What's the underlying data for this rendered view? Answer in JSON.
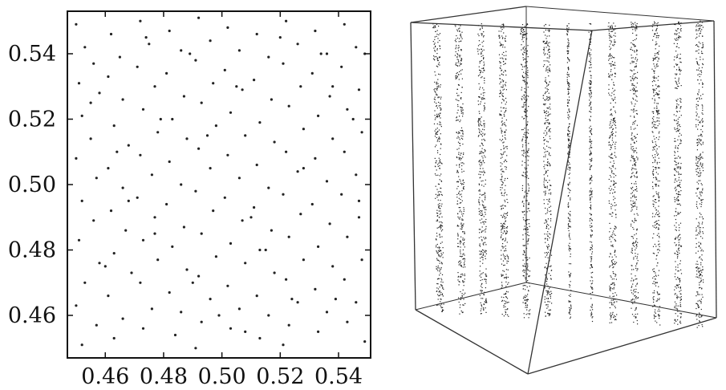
{
  "chart_data": [
    {
      "type": "scatter",
      "title": "",
      "xlabel": "",
      "ylabel": "",
      "xlim": [
        0.447,
        0.551
      ],
      "ylim": [
        0.447,
        0.553
      ],
      "x_ticks": [
        0.46,
        0.48,
        0.5,
        0.52,
        0.54
      ],
      "y_ticks": [
        0.46,
        0.48,
        0.5,
        0.52,
        0.54
      ],
      "x_tick_labels": [
        "0.46",
        "0.48",
        "0.50",
        "0.52",
        "0.54"
      ],
      "y_tick_labels": [
        "0.46",
        "0.48",
        "0.50",
        "0.52",
        "0.54"
      ],
      "grid": false,
      "marker_color": "#222222",
      "points": [
        [
          0.45,
          0.549
        ],
        [
          0.453,
          0.542
        ],
        [
          0.456,
          0.537
        ],
        [
          0.451,
          0.531
        ],
        [
          0.458,
          0.528
        ],
        [
          0.452,
          0.521
        ],
        [
          0.455,
          0.514
        ],
        [
          0.45,
          0.508
        ],
        [
          0.457,
          0.502
        ],
        [
          0.452,
          0.495
        ],
        [
          0.456,
          0.489
        ],
        [
          0.451,
          0.483
        ],
        [
          0.458,
          0.476
        ],
        [
          0.453,
          0.47
        ],
        [
          0.45,
          0.463
        ],
        [
          0.457,
          0.457
        ],
        [
          0.452,
          0.451
        ],
        [
          0.462,
          0.546
        ],
        [
          0.465,
          0.539
        ],
        [
          0.461,
          0.533
        ],
        [
          0.466,
          0.526
        ],
        [
          0.463,
          0.518
        ],
        [
          0.468,
          0.512
        ],
        [
          0.461,
          0.505
        ],
        [
          0.466,
          0.499
        ],
        [
          0.462,
          0.492
        ],
        [
          0.467,
          0.486
        ],
        [
          0.463,
          0.479
        ],
        [
          0.469,
          0.473
        ],
        [
          0.461,
          0.466
        ],
        [
          0.466,
          0.459
        ],
        [
          0.463,
          0.453
        ],
        [
          0.472,
          0.55
        ],
        [
          0.475,
          0.543
        ],
        [
          0.471,
          0.536
        ],
        [
          0.477,
          0.53
        ],
        [
          0.473,
          0.523
        ],
        [
          0.478,
          0.516
        ],
        [
          0.472,
          0.509
        ],
        [
          0.476,
          0.503
        ],
        [
          0.471,
          0.496
        ],
        [
          0.477,
          0.49
        ],
        [
          0.473,
          0.483
        ],
        [
          0.478,
          0.477
        ],
        [
          0.472,
          0.47
        ],
        [
          0.476,
          0.462
        ],
        [
          0.473,
          0.456
        ],
        [
          0.482,
          0.547
        ],
        [
          0.486,
          0.541
        ],
        [
          0.481,
          0.534
        ],
        [
          0.487,
          0.527
        ],
        [
          0.483,
          0.52
        ],
        [
          0.488,
          0.514
        ],
        [
          0.482,
          0.507
        ],
        [
          0.486,
          0.5
        ],
        [
          0.481,
          0.494
        ],
        [
          0.487,
          0.487
        ],
        [
          0.483,
          0.481
        ],
        [
          0.488,
          0.474
        ],
        [
          0.482,
          0.467
        ],
        [
          0.486,
          0.461
        ],
        [
          0.484,
          0.454
        ],
        [
          0.492,
          0.551
        ],
        [
          0.496,
          0.544
        ],
        [
          0.491,
          0.538
        ],
        [
          0.497,
          0.531
        ],
        [
          0.493,
          0.525
        ],
        [
          0.498,
          0.518
        ],
        [
          0.492,
          0.511
        ],
        [
          0.496,
          0.505
        ],
        [
          0.491,
          0.498
        ],
        [
          0.497,
          0.492
        ],
        [
          0.493,
          0.485
        ],
        [
          0.498,
          0.478
        ],
        [
          0.492,
          0.472
        ],
        [
          0.496,
          0.465
        ],
        [
          0.493,
          0.458
        ],
        [
          0.491,
          0.45
        ],
        [
          0.502,
          0.548
        ],
        [
          0.506,
          0.541
        ],
        [
          0.501,
          0.535
        ],
        [
          0.507,
          0.529
        ],
        [
          0.503,
          0.522
        ],
        [
          0.508,
          0.515
        ],
        [
          0.502,
          0.509
        ],
        [
          0.506,
          0.502
        ],
        [
          0.501,
          0.496
        ],
        [
          0.507,
          0.489
        ],
        [
          0.503,
          0.482
        ],
        [
          0.508,
          0.476
        ],
        [
          0.502,
          0.469
        ],
        [
          0.506,
          0.462
        ],
        [
          0.503,
          0.456
        ],
        [
          0.512,
          0.546
        ],
        [
          0.516,
          0.539
        ],
        [
          0.511,
          0.532
        ],
        [
          0.517,
          0.526
        ],
        [
          0.513,
          0.519
        ],
        [
          0.518,
          0.513
        ],
        [
          0.512,
          0.506
        ],
        [
          0.516,
          0.499
        ],
        [
          0.511,
          0.493
        ],
        [
          0.517,
          0.486
        ],
        [
          0.513,
          0.48
        ],
        [
          0.518,
          0.473
        ],
        [
          0.512,
          0.466
        ],
        [
          0.516,
          0.46
        ],
        [
          0.513,
          0.453
        ],
        [
          0.522,
          0.55
        ],
        [
          0.526,
          0.543
        ],
        [
          0.521,
          0.537
        ],
        [
          0.527,
          0.53
        ],
        [
          0.523,
          0.524
        ],
        [
          0.528,
          0.517
        ],
        [
          0.522,
          0.51
        ],
        [
          0.526,
          0.504
        ],
        [
          0.521,
          0.497
        ],
        [
          0.527,
          0.491
        ],
        [
          0.523,
          0.484
        ],
        [
          0.528,
          0.477
        ],
        [
          0.522,
          0.471
        ],
        [
          0.526,
          0.464
        ],
        [
          0.523,
          0.457
        ],
        [
          0.521,
          0.451
        ],
        [
          0.532,
          0.547
        ],
        [
          0.536,
          0.54
        ],
        [
          0.531,
          0.534
        ],
        [
          0.537,
          0.527
        ],
        [
          0.533,
          0.521
        ],
        [
          0.538,
          0.514
        ],
        [
          0.532,
          0.508
        ],
        [
          0.536,
          0.501
        ],
        [
          0.531,
          0.494
        ],
        [
          0.537,
          0.488
        ],
        [
          0.533,
          0.481
        ],
        [
          0.538,
          0.475
        ],
        [
          0.532,
          0.468
        ],
        [
          0.536,
          0.461
        ],
        [
          0.533,
          0.455
        ],
        [
          0.542,
          0.549
        ],
        [
          0.546,
          0.542
        ],
        [
          0.541,
          0.536
        ],
        [
          0.547,
          0.529
        ],
        [
          0.543,
          0.523
        ],
        [
          0.548,
          0.516
        ],
        [
          0.542,
          0.51
        ],
        [
          0.546,
          0.503
        ],
        [
          0.541,
          0.497
        ],
        [
          0.547,
          0.49
        ],
        [
          0.543,
          0.484
        ],
        [
          0.548,
          0.477
        ],
        [
          0.542,
          0.471
        ],
        [
          0.546,
          0.464
        ],
        [
          0.543,
          0.458
        ],
        [
          0.549,
          0.452
        ],
        [
          0.455,
          0.525
        ],
        [
          0.468,
          0.495
        ],
        [
          0.479,
          0.52
        ],
        [
          0.49,
          0.47
        ],
        [
          0.505,
          0.53
        ],
        [
          0.515,
          0.48
        ],
        [
          0.528,
          0.505
        ],
        [
          0.539,
          0.465
        ],
        [
          0.545,
          0.52
        ],
        [
          0.46,
          0.475
        ],
        [
          0.474,
          0.545
        ],
        [
          0.489,
          0.54
        ],
        [
          0.499,
          0.46
        ],
        [
          0.51,
          0.49
        ],
        [
          0.52,
          0.545
        ],
        [
          0.534,
          0.54
        ],
        [
          0.547,
          0.495
        ],
        [
          0.464,
          0.51
        ],
        [
          0.477,
          0.485
        ],
        [
          0.495,
          0.515
        ],
        [
          0.508,
          0.455
        ],
        [
          0.524,
          0.465
        ],
        [
          0.538,
          0.53
        ],
        [
          0.549,
          0.54
        ]
      ]
    },
    {
      "type": "scatter",
      "title": "",
      "xlabel": "",
      "ylabel": "",
      "view": "3d",
      "axes_box": true,
      "tick_labels": false,
      "marker_color": "#222222",
      "num_planes": 13,
      "planes_description": "parallel planes of points inside a 3-D unit cube"
    }
  ]
}
